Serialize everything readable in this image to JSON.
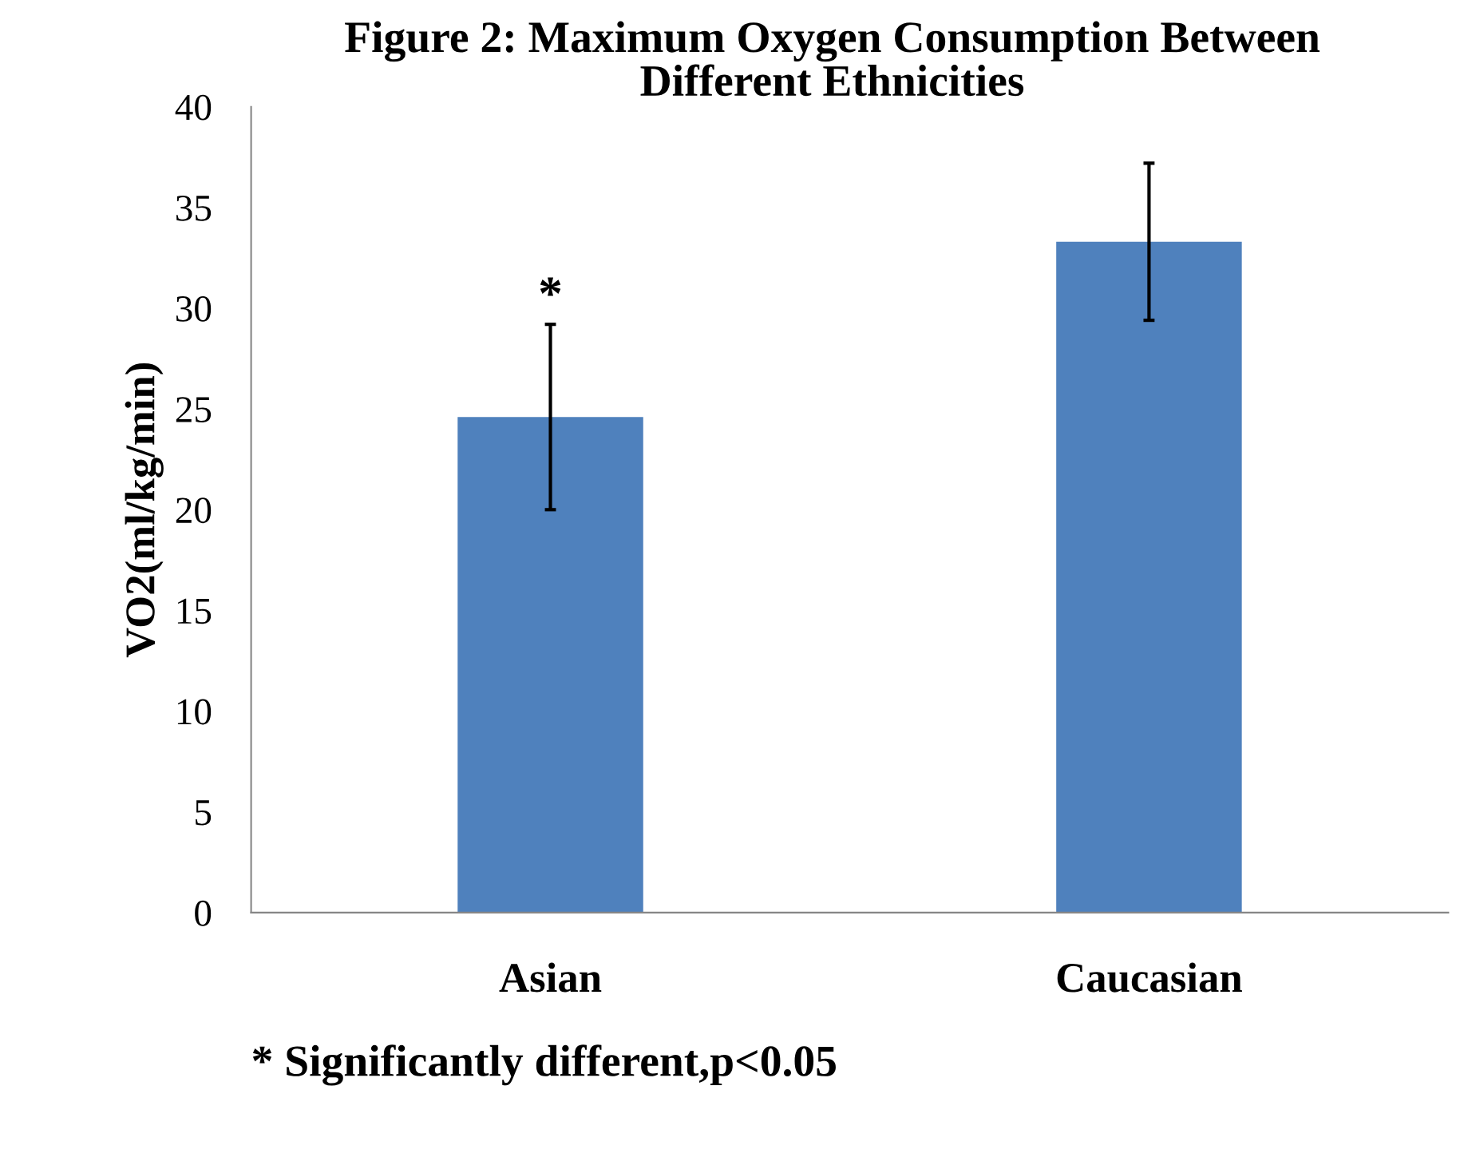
{
  "chart_data": {
    "type": "bar",
    "title": "Figure 2: Maximum Oxygen Consumption Between\nDifferent Ethnicities",
    "ylabel": "VO2(ml/kg/min)",
    "categories": [
      "Asian",
      "Caucasian"
    ],
    "values": [
      24.6,
      33.3
    ],
    "color": "#4f81bd",
    "errors": [
      4.6,
      3.9
    ],
    "ylim": [
      0,
      40
    ],
    "yticks": [
      0,
      5,
      10,
      15,
      20,
      25,
      30,
      35,
      40
    ],
    "grid": false,
    "legend": false,
    "annotations": [
      {
        "text": "*",
        "x": "Asian",
        "y": 29.3
      },
      "* Significantly different,p<0.05"
    ]
  }
}
